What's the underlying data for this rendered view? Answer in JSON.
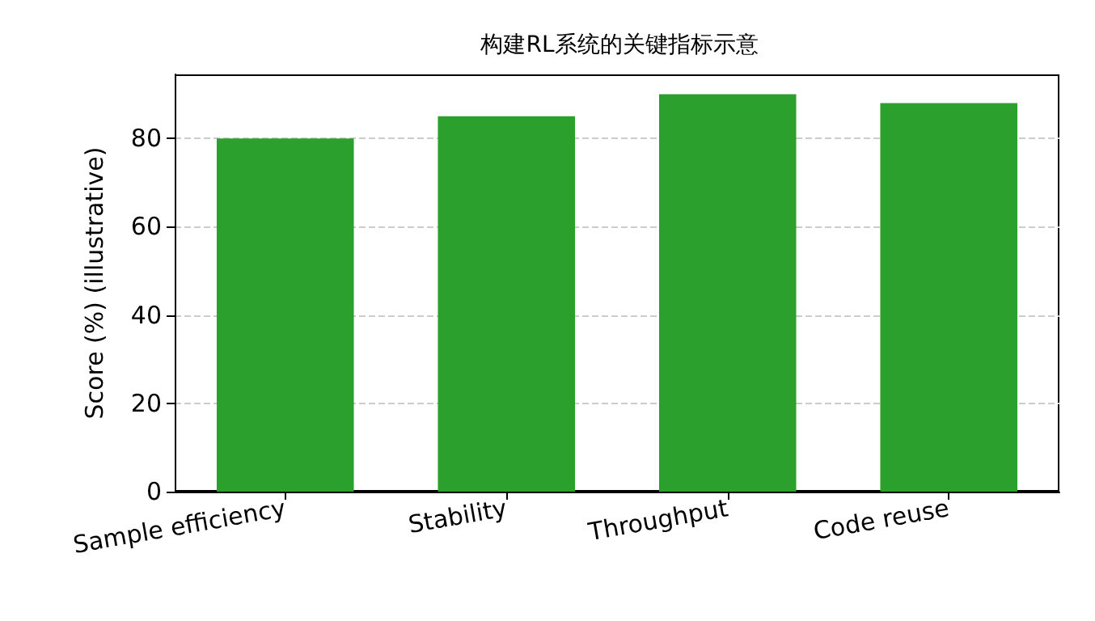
{
  "chart_data": {
    "type": "bar",
    "title": "构建RL系统的关键指标示意",
    "ylabel": "Score (%) (illustrative)",
    "categories": [
      "Sample efficiency",
      "Stability",
      "Throughput",
      "Code reuse"
    ],
    "values": [
      80,
      85,
      90,
      88
    ],
    "color": "#2ca02c",
    "ylim": [
      0,
      94.5
    ],
    "yticks": [
      0,
      20,
      40,
      60,
      80
    ],
    "grid": "y"
  }
}
